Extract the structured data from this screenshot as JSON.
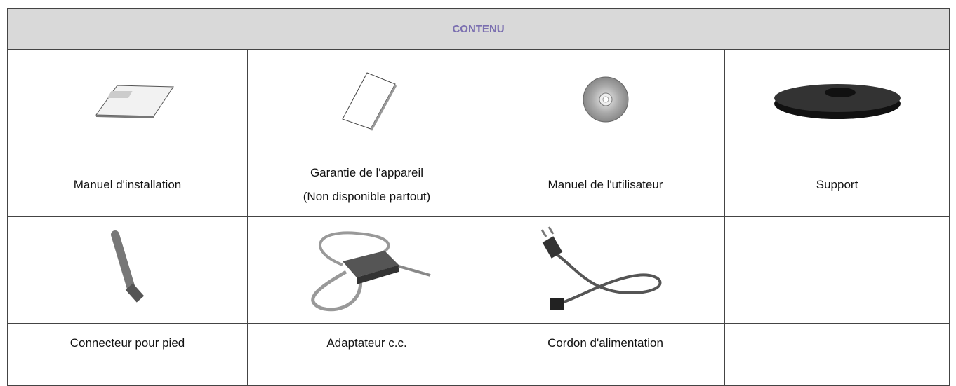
{
  "header": {
    "title": "CONTENU"
  },
  "items": [
    {
      "lines": [
        "Manuel d'installation"
      ]
    },
    {
      "lines": [
        "Garantie de l'appareil",
        "(Non disponible partout)"
      ]
    },
    {
      "lines": [
        "Manuel de l'utilisateur"
      ]
    },
    {
      "lines": [
        "Support"
      ]
    },
    {
      "lines": [
        "Connecteur pour pied"
      ]
    },
    {
      "lines": [
        "Adaptateur c.c."
      ]
    },
    {
      "lines": [
        "Cordon d'alimentation"
      ]
    }
  ]
}
